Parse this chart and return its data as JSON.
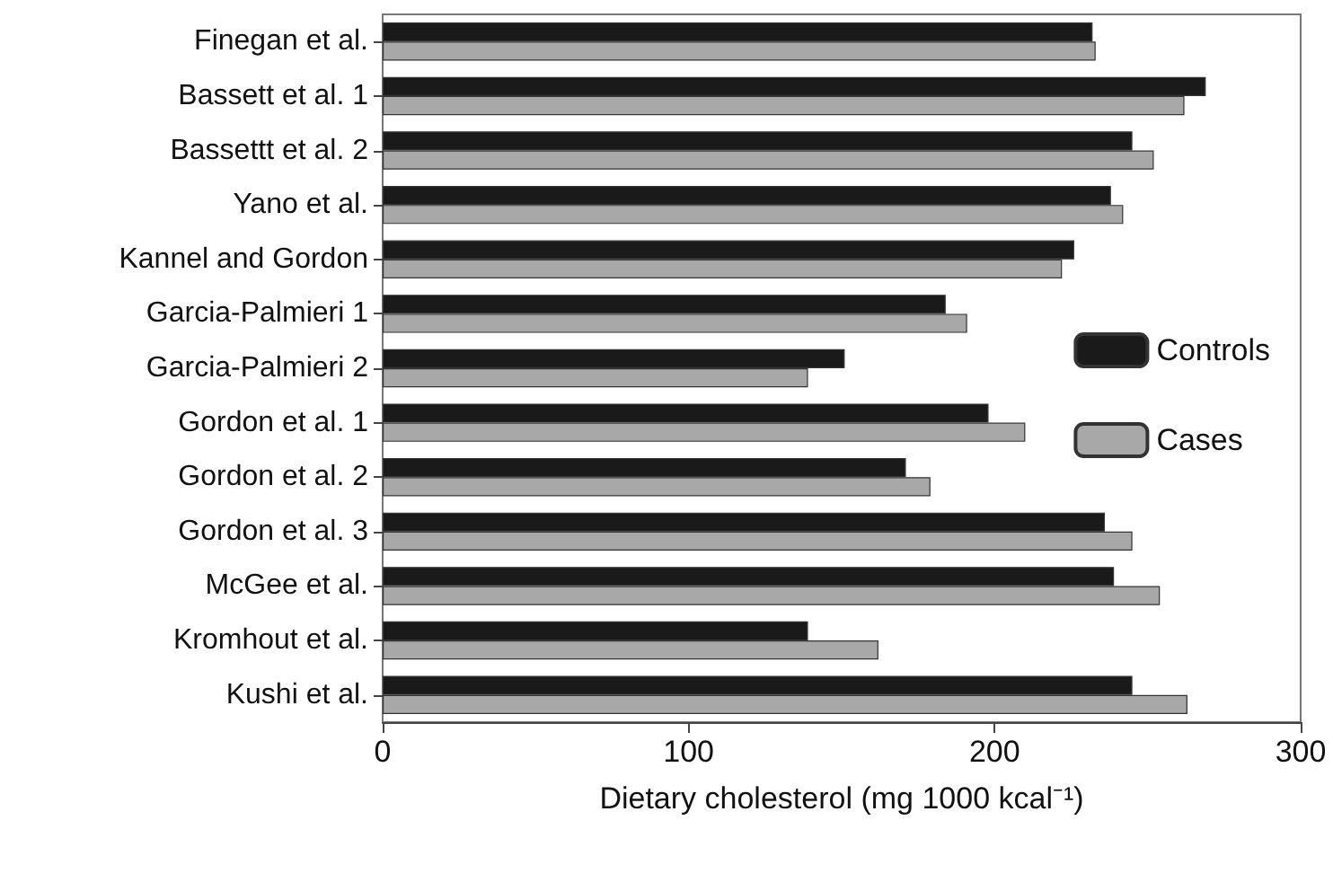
{
  "chart_data": {
    "type": "bar",
    "orientation": "horizontal",
    "xlabel": "Dietary cholesterol (mg 1000 kcal⁻¹)",
    "categories": [
      "Finegan et al.",
      "Bassett et al. 1",
      "Bassettt et al. 2",
      "Yano et al.",
      "Kannel and Gordon",
      "Garcia-Palmieri 1",
      "Garcia-Palmieri 2",
      "Gordon et al. 1",
      "Gordon et al. 2",
      "Gordon et al. 3",
      "McGee et al.",
      "Kromhout et al.",
      "Kushi et al."
    ],
    "series": [
      {
        "name": "Controls",
        "color": "#1a1a1a",
        "values": [
          232,
          269,
          245,
          238,
          226,
          184,
          151,
          198,
          171,
          236,
          239,
          139,
          245
        ]
      },
      {
        "name": "Cases",
        "color": "#a8a8a8",
        "values": [
          233,
          262,
          252,
          242,
          222,
          191,
          139,
          210,
          179,
          245,
          254,
          162,
          263
        ]
      }
    ],
    "xlim": [
      0,
      300
    ],
    "xticks": [
      0,
      100,
      200,
      300
    ],
    "legend": "right",
    "grid": false
  }
}
